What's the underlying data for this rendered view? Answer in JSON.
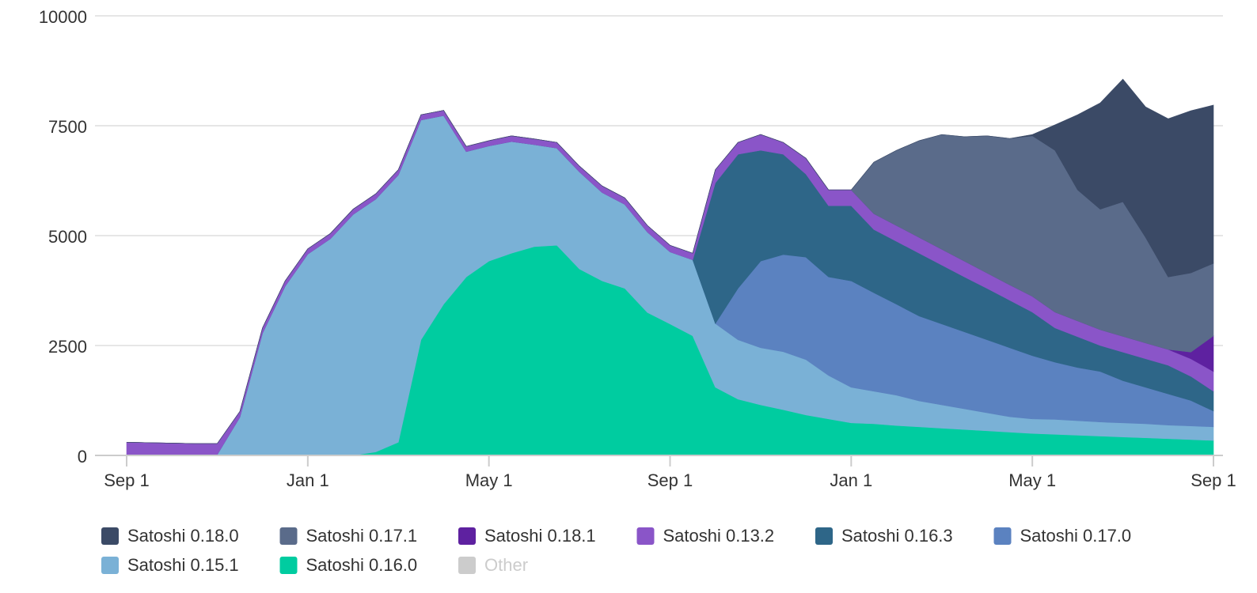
{
  "chart_data": {
    "type": "stacked_area",
    "categories": [
      "Sep 1",
      null,
      null,
      null,
      null,
      null,
      null,
      null,
      "Jan 1",
      null,
      null,
      null,
      null,
      null,
      null,
      null,
      "May 1",
      null,
      null,
      null,
      null,
      null,
      null,
      null,
      "Sep 1",
      null,
      null,
      null,
      null,
      null,
      null,
      null,
      "Jan 1",
      null,
      null,
      null,
      null,
      null,
      null,
      null,
      "May 1",
      null,
      null,
      null,
      null,
      null,
      null,
      null,
      "Sep 1"
    ],
    "ylim": [
      0,
      10000
    ],
    "yticks": [
      0,
      2500,
      5000,
      7500,
      10000
    ],
    "grid": true,
    "legend": "bottom",
    "series": [
      {
        "name": "Satoshi 0.18.0",
        "color": "#3b4a66",
        "values": [
          0,
          0,
          0,
          0,
          0,
          0,
          0,
          0,
          0,
          0,
          0,
          0,
          0,
          0,
          0,
          0,
          0,
          0,
          0,
          0,
          0,
          0,
          0,
          0,
          0,
          0,
          0,
          0,
          0,
          0,
          0,
          0,
          0,
          0,
          0,
          0,
          0,
          0,
          0,
          0,
          30,
          580,
          1710,
          2420,
          2790,
          2970,
          3600,
          3690,
          3600
        ]
      },
      {
        "name": "Satoshi 0.17.1",
        "color": "#5a6b8a",
        "values": [
          0,
          0,
          0,
          0,
          0,
          0,
          0,
          0,
          0,
          0,
          0,
          0,
          0,
          0,
          0,
          0,
          0,
          0,
          0,
          0,
          0,
          0,
          0,
          0,
          0,
          0,
          0,
          0,
          0,
          0,
          0,
          0,
          0,
          1170,
          1710,
          2200,
          2610,
          2830,
          3120,
          3330,
          3650,
          3680,
          2980,
          2740,
          3060,
          2400,
          1650,
          1800,
          1650
        ]
      },
      {
        "name": "Satoshi 0.18.1",
        "color": "#5e21a0",
        "values": [
          0,
          0,
          0,
          0,
          0,
          0,
          0,
          0,
          0,
          0,
          0,
          0,
          0,
          0,
          0,
          0,
          0,
          0,
          0,
          0,
          0,
          0,
          0,
          0,
          0,
          0,
          0,
          0,
          0,
          0,
          0,
          0,
          0,
          0,
          0,
          0,
          0,
          0,
          0,
          0,
          0,
          0,
          0,
          0,
          0,
          0,
          0,
          150,
          810
        ]
      },
      {
        "name": "Satoshi 0.13.2",
        "color": "#8a55c8",
        "values": [
          280,
          270,
          260,
          250,
          250,
          130,
          120,
          120,
          120,
          120,
          120,
          120,
          120,
          120,
          120,
          120,
          120,
          130,
          130,
          130,
          130,
          150,
          150,
          150,
          150,
          150,
          300,
          270,
          360,
          270,
          360,
          360,
          360,
          360,
          360,
          360,
          360,
          360,
          350,
          350,
          360,
          360,
          360,
          360,
          360,
          360,
          360,
          400,
          450
        ]
      },
      {
        "name": "Satoshi 0.16.3",
        "color": "#2e6688",
        "values": [
          0,
          0,
          0,
          0,
          0,
          0,
          0,
          0,
          0,
          0,
          0,
          0,
          0,
          0,
          0,
          0,
          0,
          0,
          0,
          0,
          0,
          0,
          0,
          0,
          0,
          0,
          3200,
          3050,
          2520,
          2280,
          1890,
          1620,
          1710,
          1440,
          1430,
          1430,
          1340,
          1250,
          1170,
          1080,
          990,
          780,
          700,
          590,
          650,
          650,
          650,
          550,
          450
        ]
      },
      {
        "name": "Satoshi 0.17.0",
        "color": "#5b82c0",
        "values": [
          0,
          0,
          0,
          0,
          0,
          0,
          0,
          0,
          0,
          0,
          0,
          0,
          0,
          0,
          0,
          0,
          0,
          0,
          0,
          0,
          0,
          0,
          0,
          0,
          0,
          0,
          0,
          1170,
          1970,
          2210,
          2330,
          2240,
          2420,
          2240,
          2070,
          1930,
          1840,
          1750,
          1660,
          1570,
          1440,
          1300,
          1210,
          1150,
          960,
          830,
          710,
          580,
          360
        ]
      },
      {
        "name": "Satoshi 0.15.1",
        "color": "#7ab1d6",
        "values": [
          20,
          20,
          20,
          20,
          20,
          870,
          2780,
          3850,
          4580,
          4930,
          5480,
          5750,
          6080,
          5000,
          4290,
          2850,
          2620,
          2540,
          2320,
          2210,
          2210,
          2010,
          1910,
          1830,
          1640,
          1730,
          1450,
          1350,
          1300,
          1320,
          1260,
          990,
          810,
          740,
          690,
          590,
          530,
          470,
          410,
          350,
          330,
          340,
          330,
          320,
          320,
          320,
          310,
          310,
          310
        ]
      },
      {
        "name": "Satoshi 0.16.0",
        "color": "#00cca0",
        "values": [
          0,
          0,
          0,
          0,
          0,
          0,
          0,
          0,
          0,
          0,
          0,
          80,
          300,
          2630,
          3440,
          4060,
          4420,
          4600,
          4750,
          4780,
          4240,
          3970,
          3800,
          3250,
          2990,
          2720,
          1550,
          1280,
          1150,
          1040,
          920,
          830,
          740,
          720,
          680,
          650,
          620,
          590,
          560,
          530,
          500,
          480,
          460,
          440,
          420,
          400,
          380,
          360,
          340
        ]
      },
      {
        "name": "Other",
        "color": "#cccccc",
        "visible": false
      }
    ]
  }
}
